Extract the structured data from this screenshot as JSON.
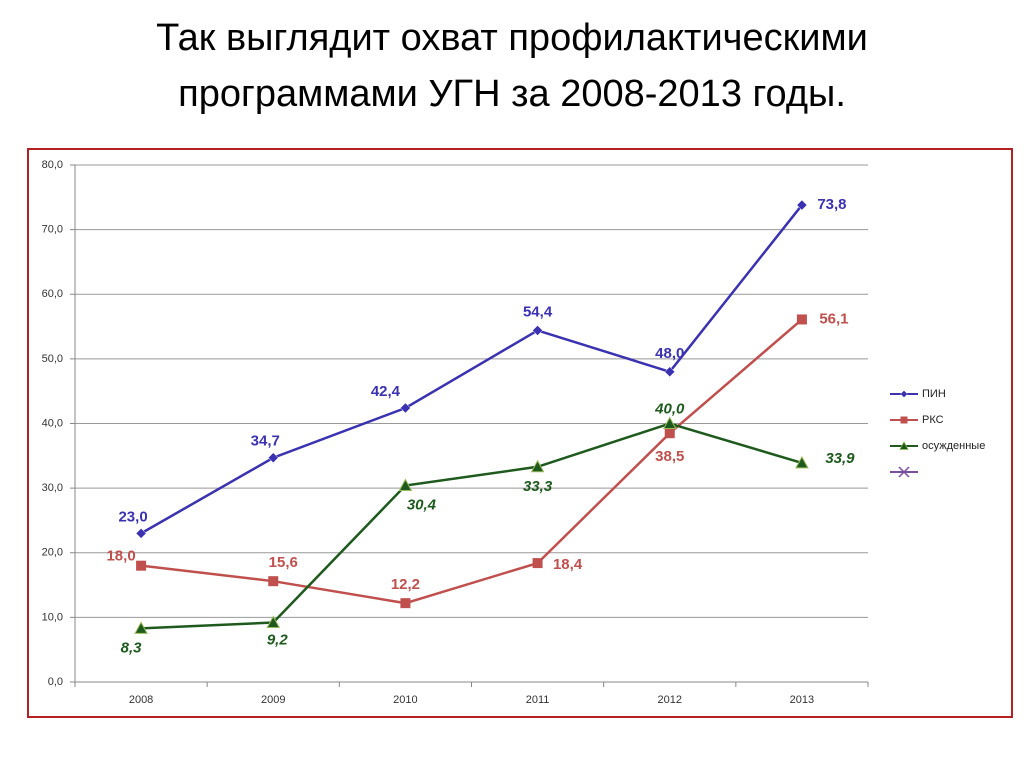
{
  "chart_data": {
    "type": "line",
    "title": "Так выглядит охват профилактическими программами УГН за 2008-2013 годы.",
    "categories": [
      "2008",
      "2009",
      "2010",
      "2011",
      "2012",
      "2013"
    ],
    "series": [
      {
        "name": "ПИН",
        "color": "#3a32b0",
        "values": [
          23.0,
          34.7,
          42.4,
          54.4,
          48.0,
          73.8
        ],
        "value_labels": [
          "23,0",
          "34,7",
          "42,4",
          "54,4",
          "48,0",
          "73,8"
        ]
      },
      {
        "name": "РКС",
        "color": "#c0504d",
        "values": [
          18.0,
          15.6,
          12.2,
          18.4,
          38.5,
          56.1
        ],
        "value_labels": [
          "18,0",
          "15,6",
          "12,2",
          "18,4",
          "38,5",
          "56,1"
        ]
      },
      {
        "name": "осужденные",
        "color": "#1e5a1e",
        "values": [
          8.3,
          9.2,
          30.4,
          33.3,
          40.0,
          33.9
        ],
        "value_labels": [
          "8,3",
          "9,2",
          "30,4",
          "33,3",
          "40,0",
          "33,9"
        ]
      }
    ],
    "ylim": [
      0,
      80
    ],
    "yticks": [
      {
        "value": 0,
        "label": "0,0"
      },
      {
        "value": 10,
        "label": "10,0"
      },
      {
        "value": 20,
        "label": "20,0"
      },
      {
        "value": 30,
        "label": "30,0"
      },
      {
        "value": 40,
        "label": "40,0"
      },
      {
        "value": 50,
        "label": "50,0"
      },
      {
        "value": 60,
        "label": "60,0"
      },
      {
        "value": 70,
        "label": "70,0"
      },
      {
        "value": 80,
        "label": "80,0"
      }
    ],
    "grid": true,
    "legend": "right"
  }
}
